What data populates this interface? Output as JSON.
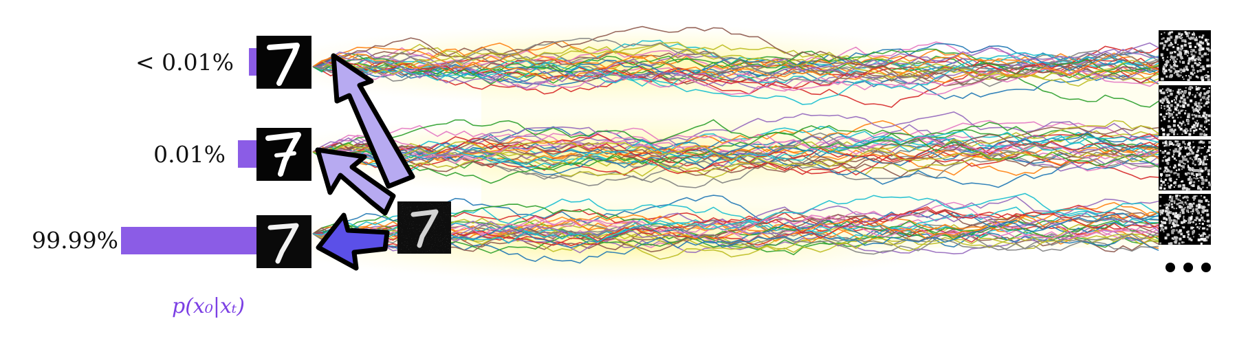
{
  "probabilities": [
    {
      "label": "< 0.01%",
      "value": 0.0001
    },
    {
      "label": "0.01%",
      "value": 0.01
    },
    {
      "label": "99.99%",
      "value": 99.99
    }
  ],
  "axis_label": "p(x₀|xₜ)",
  "ellipsis": "•••",
  "colors": {
    "bar": "#8b5ce6",
    "arrow_fill_light": "#b7aaf1",
    "arrow_fill_dark": "#5b50e8",
    "label_accent": "#7b3fe4",
    "glow": "#fff7a8"
  },
  "icons": [
    "digit-seven-image",
    "noisy-digit-image",
    "noise-image",
    "arrow-icon"
  ]
}
